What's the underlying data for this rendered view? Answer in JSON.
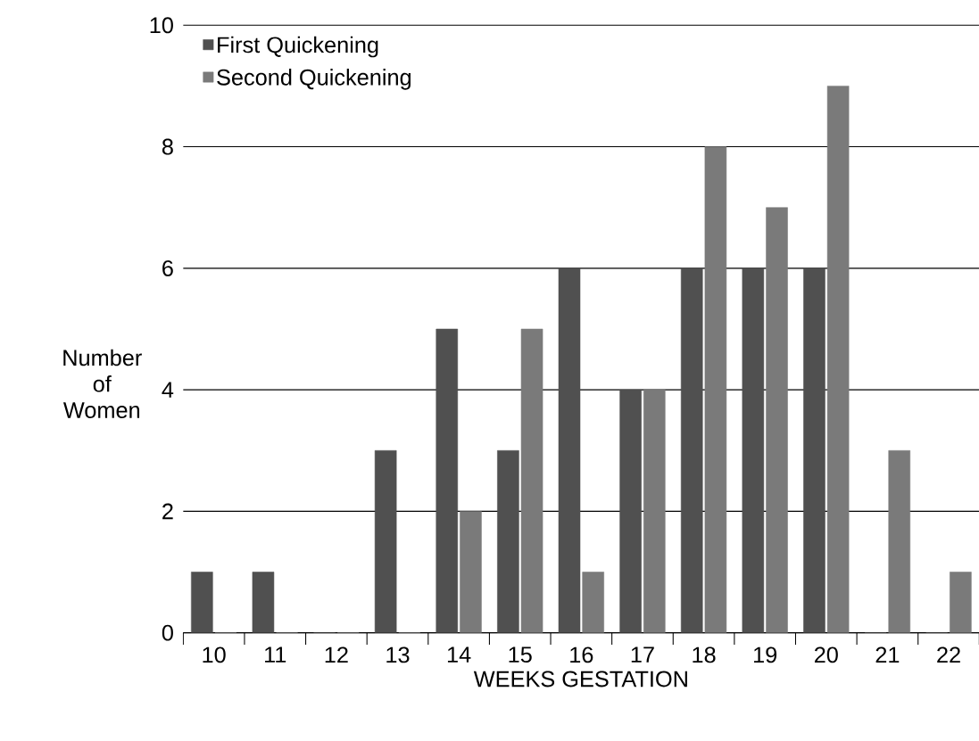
{
  "chart_data": {
    "type": "bar",
    "xlabel": "WEEKS GESTATION",
    "ylabel": "Number of Women",
    "categories": [
      "10",
      "11",
      "12",
      "13",
      "14",
      "15",
      "16",
      "17",
      "18",
      "19",
      "20",
      "21",
      "22"
    ],
    "series": [
      {
        "name": "First Quickening",
        "color": "#505050",
        "values": [
          1,
          1,
          0,
          3,
          5,
          3,
          6,
          4,
          6,
          6,
          6,
          0,
          0
        ]
      },
      {
        "name": "Second Quickening",
        "color": "#7a7a7a",
        "values": [
          0,
          0,
          0,
          0,
          2,
          5,
          1,
          4,
          8,
          7,
          9,
          3,
          1
        ]
      }
    ],
    "ylim": [
      0,
      10
    ],
    "yticks": [
      0,
      2,
      4,
      6,
      8,
      10
    ],
    "grid": "y",
    "legend": "top left"
  }
}
